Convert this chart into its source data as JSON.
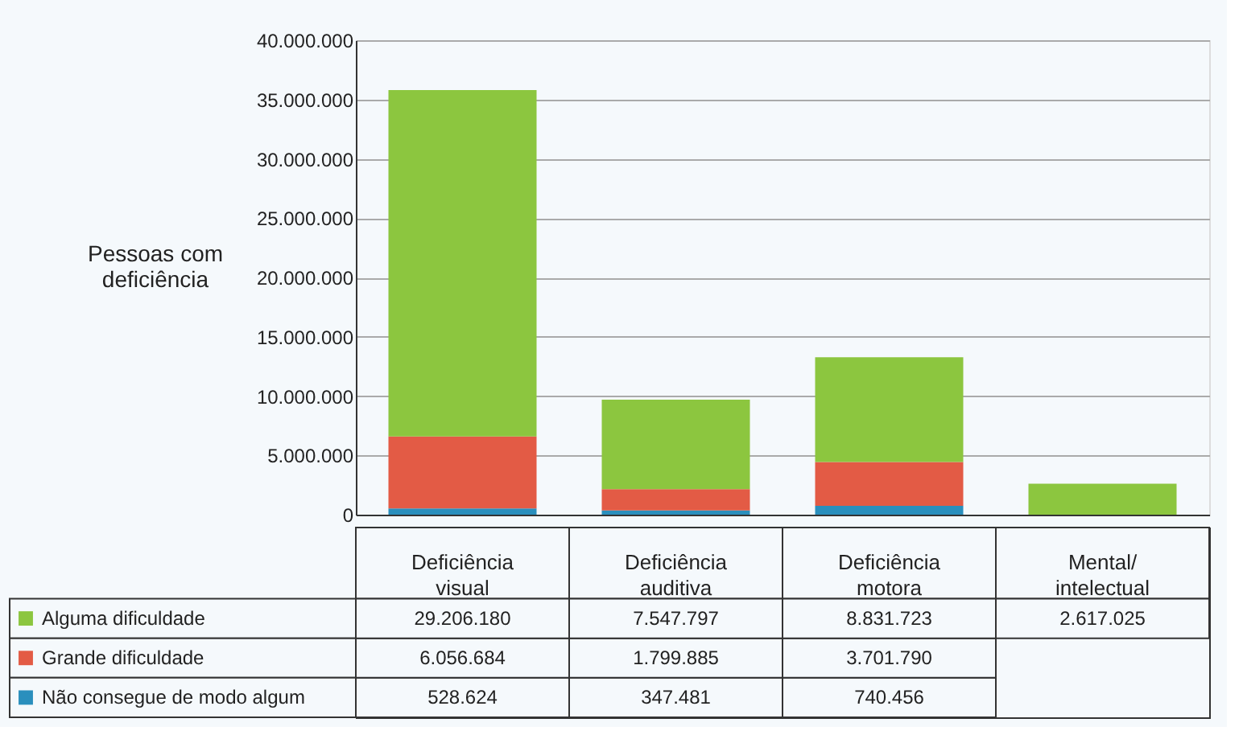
{
  "chart_data": {
    "type": "bar",
    "stacked": true,
    "ylabel": "Pessoas com deficiência",
    "categories": [
      "Deficiência visual",
      "Deficiência auditiva",
      "Deficiência motora",
      "Mental/ intelectual"
    ],
    "series": [
      {
        "name": "Não consegue de modo algum",
        "color": "#2a8fbd",
        "values": [
          528624,
          347481,
          740456,
          null
        ],
        "value_labels": [
          "528.624",
          "347.481",
          "740.456",
          null
        ]
      },
      {
        "name": "Grande dificuldade",
        "color": "#e35b45",
        "values": [
          6056684,
          1799885,
          3701790,
          null
        ],
        "value_labels": [
          "6.056.684",
          "1.799.885",
          "3.701.790",
          null
        ]
      },
      {
        "name": "Alguma dificuldade",
        "color": "#8cc63f",
        "values": [
          29206180,
          7547797,
          8831723,
          2617025
        ],
        "value_labels": [
          "29.206.180",
          "7.547.797",
          "8.831.723",
          "2.617.025"
        ]
      }
    ],
    "ylim": [
      0,
      40000000
    ],
    "yticks": [
      {
        "value": 0,
        "label": "0"
      },
      {
        "value": 5000000,
        "label": "5.000.000"
      },
      {
        "value": 10000000,
        "label": "10.000.000"
      },
      {
        "value": 15000000,
        "label": "15.000.000"
      },
      {
        "value": 20000000,
        "label": "20.000.000"
      },
      {
        "value": 25000000,
        "label": "25.000.000"
      },
      {
        "value": 30000000,
        "label": "30.000.000"
      },
      {
        "value": 35000000,
        "label": "35.000.000"
      },
      {
        "value": 40000000,
        "label": "40.000.000"
      }
    ],
    "grid": "y",
    "legend": "bottom left"
  }
}
